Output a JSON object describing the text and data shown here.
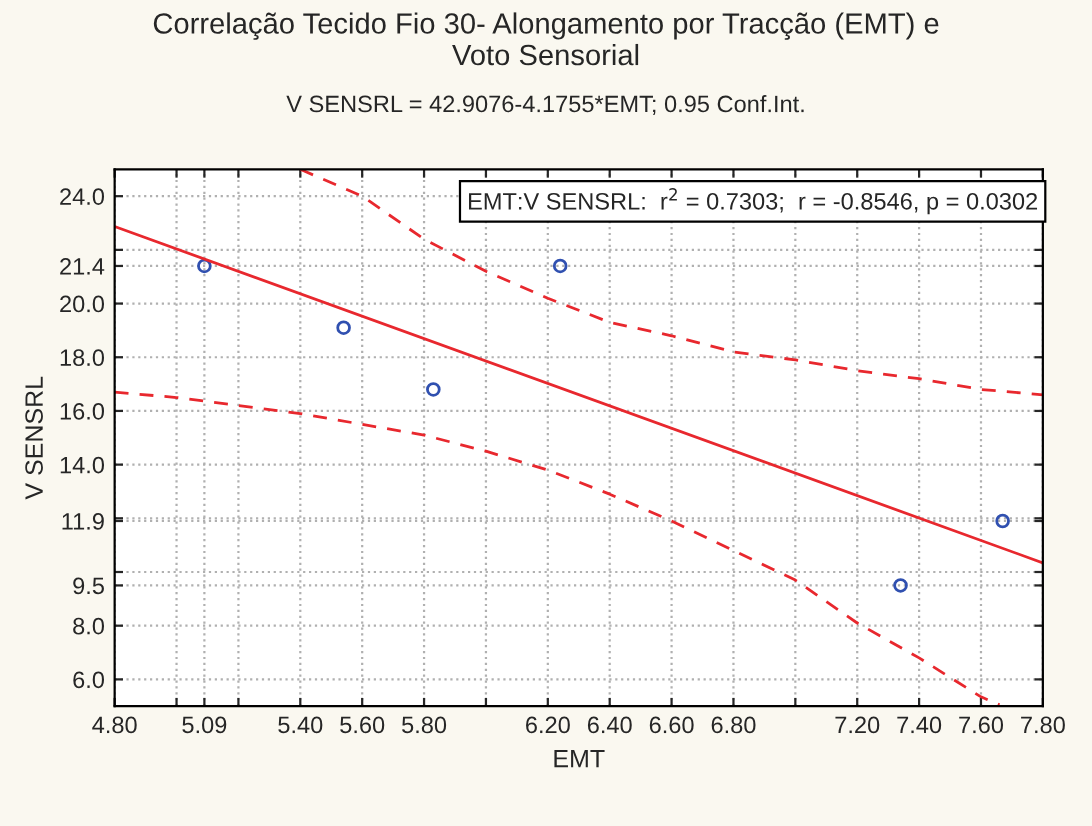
{
  "chart_data": {
    "type": "scatter",
    "title": "Correlação Tecido Fio 30- Alongamento por Tracção (EMT) e\nVoto Sensorial",
    "subtitle": "V SENSRL = 42.9076-4.1755*EMT; 0.95 Conf.Int.",
    "xlabel": "EMT",
    "ylabel": "V SENSRL",
    "annotations": [
      "EMT:V SENSRL:  r$^{2}$ = 0.7303;  r = -0.8546, p = 0.0302"
    ],
    "xlim": [
      4.8,
      7.8
    ],
    "ylim": [
      5,
      25
    ],
    "xticks": [
      {
        "value": 4.8,
        "label": "4.80"
      },
      {
        "value": 5.0,
        "label": null
      },
      {
        "value": 5.09,
        "label": "5.09"
      },
      {
        "value": 5.2,
        "label": null
      },
      {
        "value": 5.4,
        "label": "5.40"
      },
      {
        "value": 5.6,
        "label": "5.60"
      },
      {
        "value": 5.8,
        "label": "5.80"
      },
      {
        "value": 6.0,
        "label": null
      },
      {
        "value": 6.2,
        "label": "6.20"
      },
      {
        "value": 6.4,
        "label": "6.40"
      },
      {
        "value": 6.6,
        "label": "6.60"
      },
      {
        "value": 6.8,
        "label": "6.80"
      },
      {
        "value": 7.0,
        "label": null
      },
      {
        "value": 7.2,
        "label": "7.20"
      },
      {
        "value": 7.4,
        "label": "7.40"
      },
      {
        "value": 7.6,
        "label": "7.60"
      },
      {
        "value": 7.8,
        "label": "7.80"
      }
    ],
    "yticks": [
      {
        "value": 6,
        "label": "6.0"
      },
      {
        "value": 8,
        "label": "8.0"
      },
      {
        "value": 9.5,
        "label": "9.5"
      },
      {
        "value": 10,
        "label": null
      },
      {
        "value": 11.9,
        "label": "11.9"
      },
      {
        "value": 12,
        "label": null
      },
      {
        "value": 14,
        "label": "14.0"
      },
      {
        "value": 16,
        "label": "16.0"
      },
      {
        "value": 18,
        "label": "18.0"
      },
      {
        "value": 20,
        "label": "20.0"
      },
      {
        "value": 21.4,
        "label": "21.4"
      },
      {
        "value": 22,
        "label": null
      },
      {
        "value": 24,
        "label": "24.0"
      }
    ],
    "grid": true,
    "series": [
      {
        "marker": "circle",
        "color": "#3050b0",
        "x": [
          5.09,
          5.54,
          5.83,
          6.24,
          7.34,
          7.67
        ],
        "values": [
          21.4,
          19.1,
          16.8,
          21.4,
          9.5,
          11.9
        ]
      },
      {
        "type": "line",
        "marker": "none",
        "line_style": "solid",
        "color": "#e8282e",
        "x": [
          4.8,
          7.8
        ],
        "values": [
          22.87,
          10.34
        ]
      },
      {
        "type": "line",
        "marker": "none",
        "line_style": "dashed",
        "color": "#e8282e",
        "x": [
          5.4,
          5.6,
          5.8,
          6.0,
          6.2,
          6.4,
          6.6,
          6.8,
          7.0,
          7.2,
          7.4,
          7.6,
          7.8
        ],
        "values": [
          25.0,
          24.0,
          22.4,
          21.2,
          20.2,
          19.3,
          18.8,
          18.2,
          17.9,
          17.5,
          17.2,
          16.8,
          16.6
        ]
      },
      {
        "type": "line",
        "marker": "none",
        "line_style": "dashed",
        "color": "#e8282e",
        "x": [
          4.8,
          5.0,
          5.2,
          5.4,
          5.6,
          5.8,
          6.0,
          6.2,
          6.4,
          6.6,
          6.8,
          7.0,
          7.2,
          7.4,
          7.6,
          7.66
        ],
        "values": [
          16.7,
          16.5,
          16.2,
          15.9,
          15.5,
          15.1,
          14.5,
          13.8,
          12.9,
          11.9,
          10.8,
          9.7,
          8.1,
          6.8,
          5.35,
          5.05
        ]
      }
    ]
  }
}
